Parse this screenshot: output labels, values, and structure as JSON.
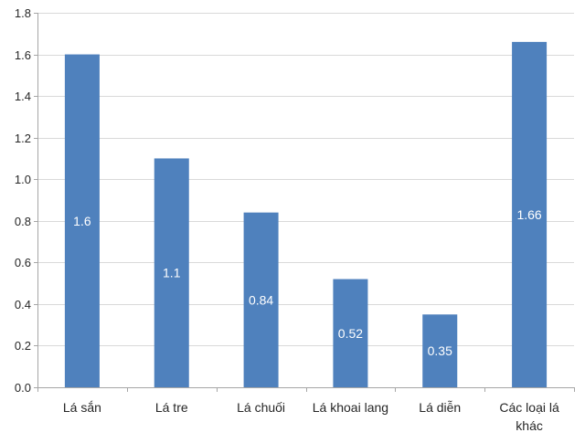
{
  "chart_data": {
    "type": "bar",
    "categories": [
      [
        "Lá sắn"
      ],
      [
        "Lá tre"
      ],
      [
        "Lá chuối"
      ],
      [
        "Lá khoai lang"
      ],
      [
        "Lá diễn"
      ],
      [
        "Các loại lá",
        "khác"
      ]
    ],
    "values": [
      1.6,
      1.1,
      0.84,
      0.52,
      0.35,
      1.66
    ],
    "data_labels": [
      "1.6",
      "1.1",
      "0.84",
      "0.52",
      "0.35",
      "1.66"
    ],
    "y_ticks": [
      "0.0",
      "0.2",
      "0.4",
      "0.6",
      "0.8",
      "1.0",
      "1.2",
      "1.4",
      "1.6",
      "1.8"
    ],
    "ylim": [
      0,
      1.8
    ],
    "grid": true,
    "legend": "none",
    "title": "",
    "xlabel": "",
    "ylabel": "",
    "colors": {
      "bar": "#4f81bd",
      "grid": "#d9d9d9",
      "axis": "#a6a6a6",
      "text": "#262626",
      "data_label": "#ffffff"
    }
  }
}
